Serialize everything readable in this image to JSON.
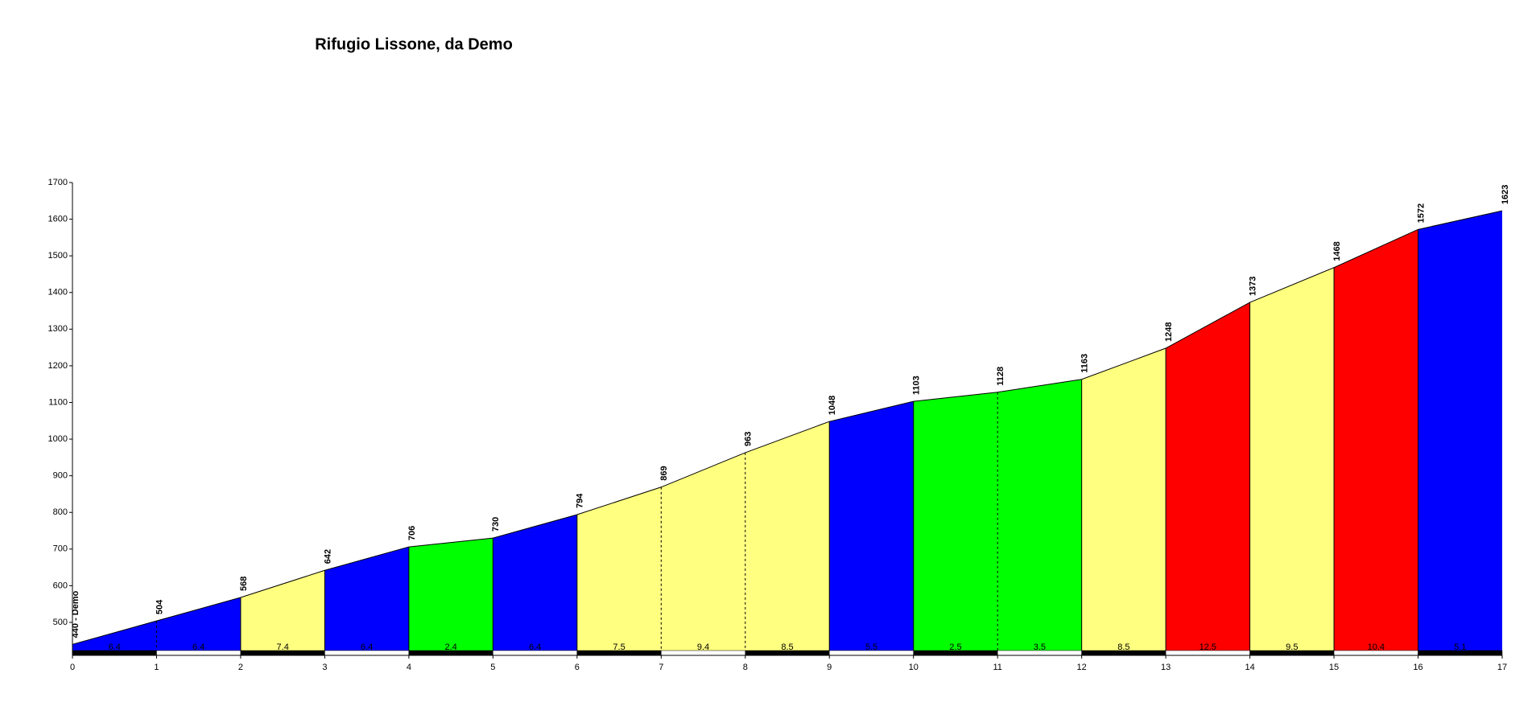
{
  "chart_data": {
    "type": "area",
    "title": "Rifugio Lissone, da Demo",
    "x": [
      0,
      1,
      2,
      3,
      4,
      5,
      6,
      7,
      8,
      9,
      10,
      11,
      12,
      13,
      14,
      15,
      16,
      17
    ],
    "values": [
      440,
      504,
      568,
      642,
      706,
      730,
      794,
      869,
      963,
      1048,
      1103,
      1128,
      1163,
      1248,
      1373,
      1468,
      1572,
      1623
    ],
    "value_labels": [
      "440 - Demo",
      "504",
      "568",
      "642",
      "706",
      "730",
      "794",
      "869",
      "963",
      "1048",
      "1103",
      "1128",
      "1163",
      "1248",
      "1373",
      "1468",
      "1572",
      "1623"
    ],
    "gradients": [
      6.4,
      6.4,
      7.4,
      6.4,
      2.4,
      6.4,
      7.5,
      9.4,
      8.5,
      5.5,
      2.5,
      3.5,
      8.5,
      12.5,
      9.5,
      10.4,
      5.1
    ],
    "segment_colors": [
      "#0000ff",
      "#0000ff",
      "#ffff80",
      "#0000ff",
      "#00ff00",
      "#0000ff",
      "#ffff80",
      "#ffff80",
      "#ffff80",
      "#0000ff",
      "#00ff00",
      "#00ff00",
      "#ffff80",
      "#ff0000",
      "#ffff80",
      "#ff0000",
      "#0000ff"
    ],
    "xlim": [
      0,
      17
    ],
    "ylim": [
      410,
      1700
    ],
    "xticks": [
      0,
      1,
      2,
      3,
      4,
      5,
      6,
      7,
      8,
      9,
      10,
      11,
      12,
      13,
      14,
      15,
      16,
      17
    ],
    "yticks": [
      500,
      600,
      700,
      800,
      900,
      1000,
      1100,
      1200,
      1300,
      1400,
      1500,
      1600,
      1700
    ]
  }
}
